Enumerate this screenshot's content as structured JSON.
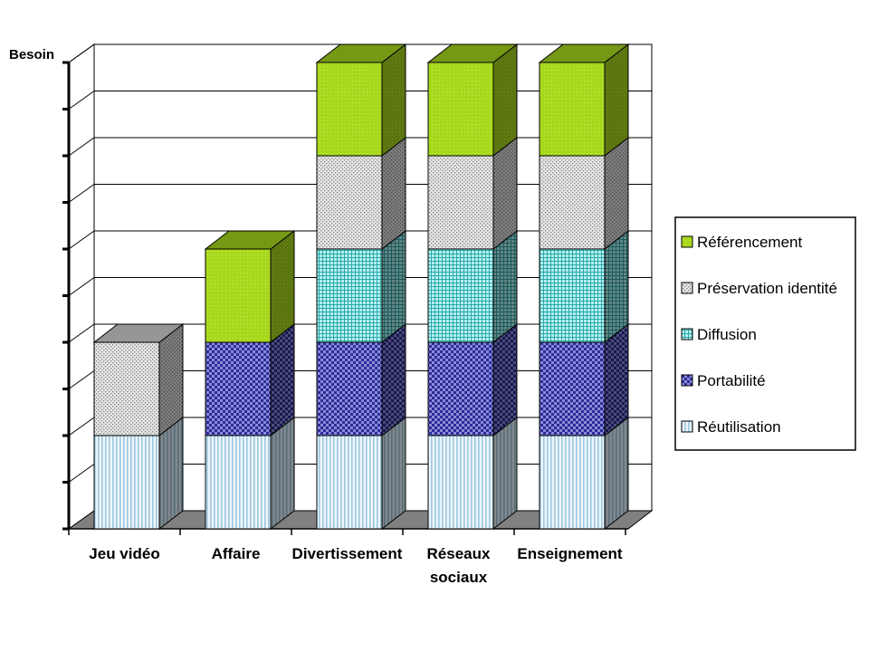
{
  "chart_data": {
    "type": "bar",
    "stacked": true,
    "three_d": true,
    "ylabel": "Besoin",
    "xlabel": "",
    "title": "",
    "ylim": [
      0,
      10
    ],
    "grid": true,
    "legend_position": "right",
    "categories": [
      "Jeu vidéo",
      "Affaire",
      "Divertissement",
      "Réseaux sociaux",
      "Enseignement"
    ],
    "series": [
      {
        "name": "Réutilisation",
        "values": [
          2,
          2,
          2,
          2,
          2
        ],
        "color": "#dcecf6",
        "pattern": "vertical-lines"
      },
      {
        "name": "Portabilité",
        "values": [
          0,
          2,
          2,
          2,
          2
        ],
        "color": "#3c3ca8",
        "pattern": "checker"
      },
      {
        "name": "Diffusion",
        "values": [
          0,
          0,
          2,
          2,
          2
        ],
        "color": "#5ad6d6",
        "pattern": "grid"
      },
      {
        "name": "Préservation identité",
        "values": [
          2,
          0,
          2,
          2,
          2
        ],
        "color": "#c8c8c8",
        "pattern": "dots"
      },
      {
        "name": "Référencement",
        "values": [
          0,
          2,
          2,
          2,
          2
        ],
        "color": "#9ccc1c",
        "pattern": "solid-dots"
      }
    ]
  }
}
